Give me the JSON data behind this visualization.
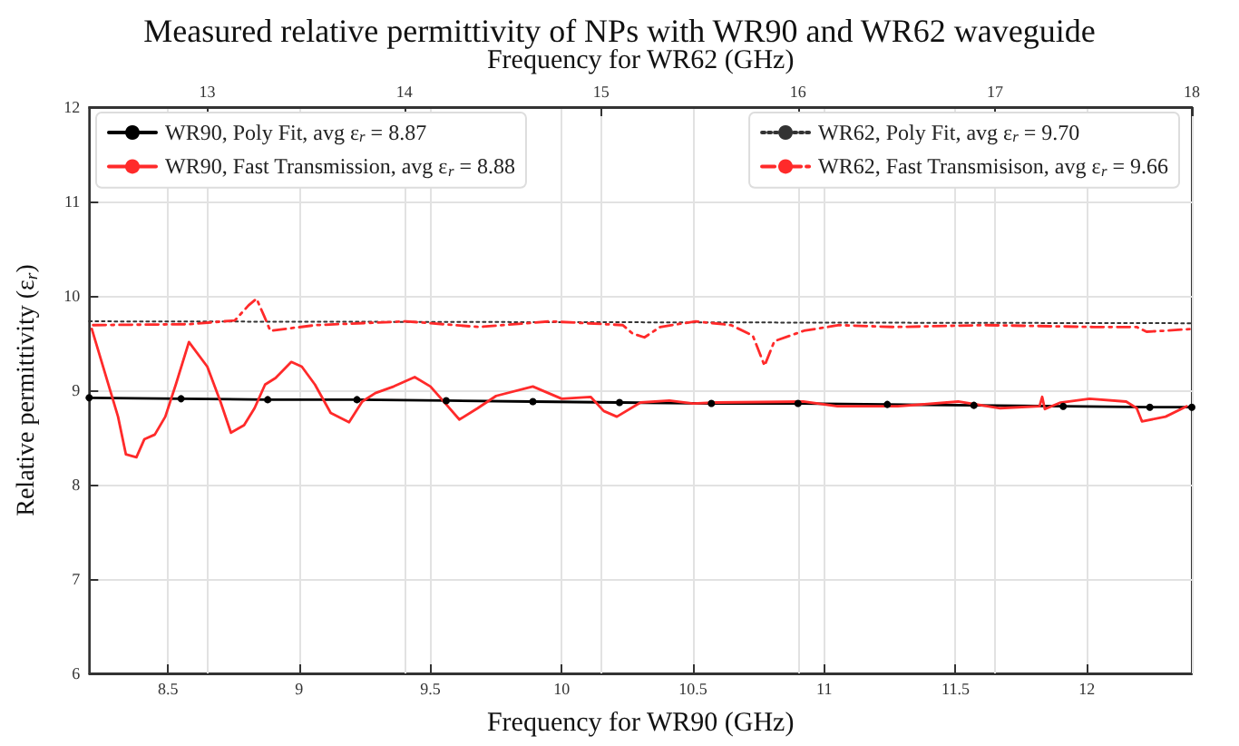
{
  "chart_data": {
    "type": "line",
    "title": "Measured relative permittivity of NPs with WR90 and WR62 waveguide",
    "xlabel": "Frequency for WR90 (GHz)",
    "x2label": "Frequency for WR62 (GHz)",
    "ylabel": "Relative permittivity (ε$_{r}$)",
    "xlim": [
      8.2,
      12.4
    ],
    "xticks": [
      8.5,
      9,
      9.5,
      10,
      10.5,
      11,
      11.5,
      12
    ],
    "x2lim": [
      12.4,
      18
    ],
    "x2ticks": [
      13,
      14,
      15,
      16,
      17,
      18
    ],
    "ylim": [
      6,
      12
    ],
    "yticks": [
      6,
      7,
      8,
      9,
      10,
      11,
      12
    ],
    "grid": true,
    "legend": "top",
    "series": [
      {
        "name": "WR90, Poly Fit, avg ε$_{r}$ = 8.87",
        "color": "#000000",
        "marker": "circle",
        "line_style": "solid",
        "x": [
          8.2,
          8.55,
          8.88,
          9.22,
          9.56,
          9.89,
          10.22,
          10.57,
          10.9,
          11.24,
          11.57,
          11.91,
          12.24,
          12.4
        ],
        "values": [
          8.92,
          8.91,
          8.9,
          8.9,
          8.89,
          8.88,
          8.87,
          8.86,
          8.86,
          8.85,
          8.84,
          8.83,
          8.82,
          8.82
        ]
      },
      {
        "name": "WR90, Fast Transmission, avg ε$_{r}$ = 8.88",
        "color": "#ff2a2a",
        "marker": "none",
        "line_style": "solid",
        "x": [
          8.21,
          8.31,
          8.34,
          8.38,
          8.41,
          8.45,
          8.49,
          8.53,
          8.58,
          8.65,
          8.7,
          8.74,
          8.79,
          8.83,
          8.87,
          8.91,
          8.97,
          9.01,
          9.06,
          9.12,
          9.19,
          9.24,
          9.29,
          9.36,
          9.44,
          9.5,
          9.56,
          9.61,
          9.68,
          9.75,
          9.89,
          10.0,
          10.11,
          10.16,
          10.21,
          10.3,
          10.41,
          10.5,
          10.59,
          10.92,
          11.05,
          11.28,
          11.51,
          11.67,
          11.82,
          11.83,
          11.84,
          11.9,
          12.01,
          12.15,
          12.19,
          12.21,
          12.3,
          12.38
        ],
        "values": [
          9.65,
          8.72,
          8.32,
          8.29,
          8.48,
          8.53,
          8.72,
          9.06,
          9.51,
          9.25,
          8.88,
          8.55,
          8.63,
          8.81,
          9.06,
          9.13,
          9.3,
          9.25,
          9.06,
          8.76,
          8.66,
          8.88,
          8.97,
          9.04,
          9.14,
          9.04,
          8.85,
          8.69,
          8.81,
          8.94,
          9.04,
          8.91,
          8.93,
          8.78,
          8.72,
          8.87,
          8.89,
          8.86,
          8.87,
          8.88,
          8.83,
          8.83,
          8.88,
          8.81,
          8.83,
          8.93,
          8.8,
          8.87,
          8.91,
          8.88,
          8.81,
          8.67,
          8.72,
          8.83
        ]
      },
      {
        "name": "WR62, Poly Fit, avg ε$_{r}$ = 9.70",
        "color": "#333333",
        "marker": "none",
        "line_style": "dotted",
        "axis": "x2",
        "x": [
          12.4,
          15.2,
          18
        ],
        "values": [
          9.73,
          9.72,
          9.71
        ]
      },
      {
        "name": "WR62, Fast Transmisison, avg ε$_{r}$ = 9.66",
        "color": "#ff2a2a",
        "marker": "none",
        "line_style": "dashdot",
        "axis": "x2",
        "x": [
          12.42,
          12.91,
          13.14,
          13.21,
          13.25,
          13.29,
          13.32,
          13.55,
          14.01,
          14.38,
          14.74,
          15.11,
          15.16,
          15.22,
          15.3,
          15.48,
          15.66,
          15.77,
          15.83,
          15.88,
          16.03,
          16.21,
          16.49,
          16.95,
          17.5,
          17.72,
          17.77,
          17.86,
          18.0
        ],
        "values": [
          9.69,
          9.7,
          9.74,
          9.9,
          9.97,
          9.78,
          9.63,
          9.69,
          9.73,
          9.67,
          9.73,
          9.69,
          9.6,
          9.56,
          9.67,
          9.73,
          9.69,
          9.58,
          9.26,
          9.52,
          9.63,
          9.69,
          9.67,
          9.69,
          9.67,
          9.67,
          9.62,
          9.63,
          9.65
        ]
      }
    ]
  }
}
